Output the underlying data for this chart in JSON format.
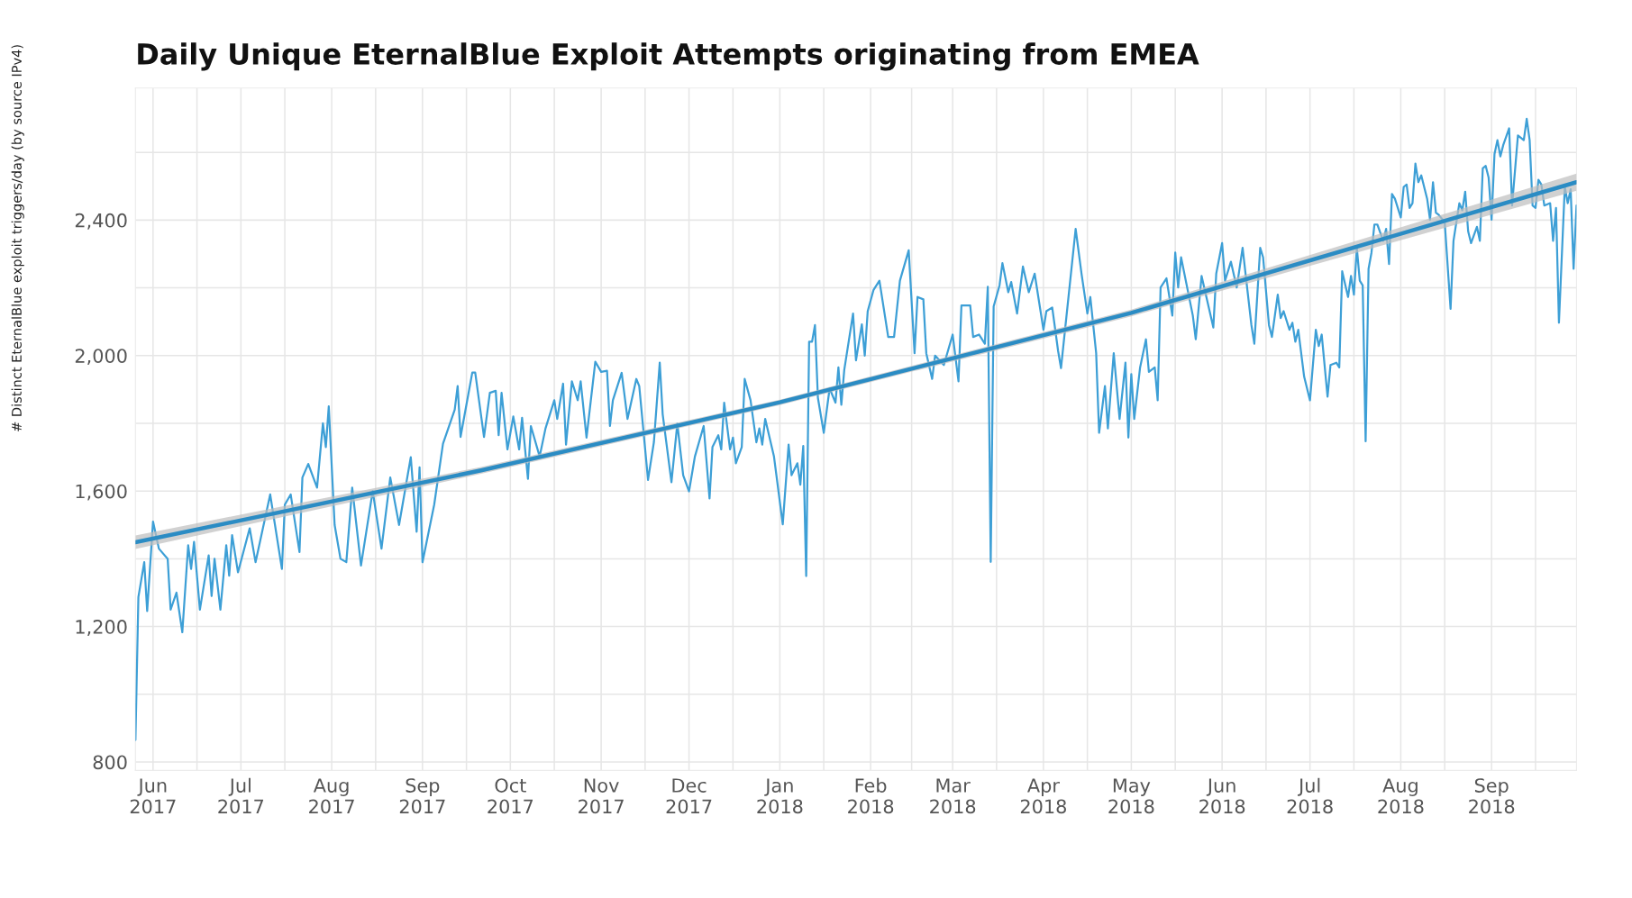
{
  "chart_data": {
    "type": "line",
    "title": "Daily Unique EternalBlue Exploit Attempts originating from EMEA",
    "ylabel": "# Distinct EternalBlue exploit triggers/day (by source IPv4)",
    "xlim": [
      "2017-05-26",
      "2018-09-30"
    ],
    "ylim": [
      775,
      2790
    ],
    "yticks": [
      800,
      {
        "value": 1000,
        "label": null
      },
      {
        "value": 1200,
        "label": "1,200"
      },
      {
        "value": 1400,
        "label": null
      },
      {
        "value": 1600,
        "label": "1,600"
      },
      {
        "value": 1800,
        "label": null
      },
      {
        "value": 2000,
        "label": "2,000"
      },
      {
        "value": 2200,
        "label": null
      },
      {
        "value": 2400,
        "label": "2,400"
      },
      {
        "value": 2600,
        "label": null
      }
    ],
    "xticks": [
      {
        "value": "2017-06-01",
        "label": "Jun\n2017"
      },
      {
        "value": "2017-06-16",
        "label": null
      },
      {
        "value": "2017-07-01",
        "label": "Jul\n2017"
      },
      {
        "value": "2017-07-16",
        "label": null
      },
      {
        "value": "2017-08-01",
        "label": "Aug\n2017"
      },
      {
        "value": "2017-08-16",
        "label": null
      },
      {
        "value": "2017-09-01",
        "label": "Sep\n2017"
      },
      {
        "value": "2017-09-16",
        "label": null
      },
      {
        "value": "2017-10-01",
        "label": "Oct\n2017"
      },
      {
        "value": "2017-10-16",
        "label": null
      },
      {
        "value": "2017-11-01",
        "label": "Nov\n2017"
      },
      {
        "value": "2017-11-16",
        "label": null
      },
      {
        "value": "2017-12-01",
        "label": "Dec\n2017"
      },
      {
        "value": "2017-12-16",
        "label": null
      },
      {
        "value": "2018-01-01",
        "label": "Jan\n2018"
      },
      {
        "value": "2018-01-16",
        "label": null
      },
      {
        "value": "2018-02-01",
        "label": "Feb\n2018"
      },
      {
        "value": "2018-02-15",
        "label": null
      },
      {
        "value": "2018-03-01",
        "label": "Mar\n2018"
      },
      {
        "value": "2018-03-16",
        "label": null
      },
      {
        "value": "2018-04-01",
        "label": "Apr\n2018"
      },
      {
        "value": "2018-04-16",
        "label": null
      },
      {
        "value": "2018-05-01",
        "label": "May\n2018"
      },
      {
        "value": "2018-05-16",
        "label": null
      },
      {
        "value": "2018-06-01",
        "label": "Jun\n2018"
      },
      {
        "value": "2018-06-16",
        "label": null
      },
      {
        "value": "2018-07-01",
        "label": "Jul\n2018"
      },
      {
        "value": "2018-07-16",
        "label": null
      },
      {
        "value": "2018-08-01",
        "label": "Aug\n2018"
      },
      {
        "value": "2018-08-16",
        "label": null
      },
      {
        "value": "2018-09-01",
        "label": "Sep\n2018"
      },
      {
        "value": "2018-09-16",
        "label": null
      }
    ],
    "grid": true,
    "series": [
      {
        "color": "#3d9fd6",
        "x": [
          "2017-05-26",
          "2017-05-27",
          "2017-05-29",
          "2017-05-30",
          "2017-06-01",
          "2017-06-03",
          "2017-06-06",
          "2017-06-07",
          "2017-06-09",
          "2017-06-11",
          "2017-06-13",
          "2017-06-14",
          "2017-06-15",
          "2017-06-17",
          "2017-06-20",
          "2017-06-21",
          "2017-06-22",
          "2017-06-24",
          "2017-06-26",
          "2017-06-27",
          "2017-06-28",
          "2017-06-30",
          "2017-07-04",
          "2017-07-06",
          "2017-07-11",
          "2017-07-15",
          "2017-07-16",
          "2017-07-18",
          "2017-07-21",
          "2017-07-22",
          "2017-07-24",
          "2017-07-27",
          "2017-07-29",
          "2017-07-30",
          "2017-07-31",
          "2017-08-02",
          "2017-08-04",
          "2017-08-06",
          "2017-08-08",
          "2017-08-11",
          "2017-08-15",
          "2017-08-18",
          "2017-08-21",
          "2017-08-24",
          "2017-08-28",
          "2017-08-30",
          "2017-08-31",
          "2017-09-01",
          "2017-09-05",
          "2017-09-08",
          "2017-09-12",
          "2017-09-13",
          "2017-09-14",
          "2017-09-18",
          "2017-09-19",
          "2017-09-22",
          "2017-09-24",
          "2017-09-26",
          "2017-09-27",
          "2017-09-28",
          "2017-09-30",
          "2017-10-02",
          "2017-10-04",
          "2017-10-05",
          "2017-10-07",
          "2017-10-08",
          "2017-10-11",
          "2017-10-13",
          "2017-10-16",
          "2017-10-17",
          "2017-10-19",
          "2017-10-20",
          "2017-10-22",
          "2017-10-24",
          "2017-10-25",
          "2017-10-27",
          "2017-10-30",
          "2017-11-01",
          "2017-11-03",
          "2017-11-04",
          "2017-11-05",
          "2017-11-08",
          "2017-11-10",
          "2017-11-13",
          "2017-11-14",
          "2017-11-17",
          "2017-11-19",
          "2017-11-21",
          "2017-11-22",
          "2017-11-25",
          "2017-11-27",
          "2017-11-29",
          "2017-12-01",
          "2017-12-03",
          "2017-12-06",
          "2017-12-08",
          "2017-12-09",
          "2017-12-11",
          "2017-12-12",
          "2017-12-13",
          "2017-12-15",
          "2017-12-16",
          "2017-12-17",
          "2017-12-19",
          "2017-12-20",
          "2017-12-22",
          "2017-12-24",
          "2017-12-25",
          "2017-12-26",
          "2017-12-27",
          "2017-12-30",
          "2018-01-02",
          "2018-01-04",
          "2018-01-05",
          "2018-01-07",
          "2018-01-08",
          "2018-01-09",
          "2018-01-10",
          "2018-01-11",
          "2018-01-12",
          "2018-01-13",
          "2018-01-14",
          "2018-01-16",
          "2018-01-18",
          "2018-01-20",
          "2018-01-21",
          "2018-01-22",
          "2018-01-23",
          "2018-01-26",
          "2018-01-27",
          "2018-01-29",
          "2018-01-30",
          "2018-01-31",
          "2018-02-02",
          "2018-02-04",
          "2018-02-05",
          "2018-02-07",
          "2018-02-09",
          "2018-02-11",
          "2018-02-14",
          "2018-02-16",
          "2018-02-17",
          "2018-02-19",
          "2018-02-20",
          "2018-02-22",
          "2018-02-23",
          "2018-02-26",
          "2018-03-01",
          "2018-03-03",
          "2018-03-04",
          "2018-03-07",
          "2018-03-08",
          "2018-03-10",
          "2018-03-12",
          "2018-03-13",
          "2018-03-14",
          "2018-03-15",
          "2018-03-17",
          "2018-03-18",
          "2018-03-20",
          "2018-03-21",
          "2018-03-23",
          "2018-03-25",
          "2018-03-27",
          "2018-03-29",
          "2018-04-01",
          "2018-04-02",
          "2018-04-04",
          "2018-04-06",
          "2018-04-07",
          "2018-04-12",
          "2018-04-14",
          "2018-04-16",
          "2018-04-17",
          "2018-04-19",
          "2018-04-20",
          "2018-04-22",
          "2018-04-23",
          "2018-04-25",
          "2018-04-27",
          "2018-04-29",
          "2018-04-30",
          "2018-05-01",
          "2018-05-02",
          "2018-05-04",
          "2018-05-06",
          "2018-05-07",
          "2018-05-09",
          "2018-05-10",
          "2018-05-11",
          "2018-05-13",
          "2018-05-15",
          "2018-05-16",
          "2018-05-17",
          "2018-05-18",
          "2018-05-22",
          "2018-05-23",
          "2018-05-25",
          "2018-05-27",
          "2018-05-29",
          "2018-05-30",
          "2018-06-01",
          "2018-06-02",
          "2018-06-04",
          "2018-06-06",
          "2018-06-08",
          "2018-06-09",
          "2018-06-11",
          "2018-06-12",
          "2018-06-14",
          "2018-06-15",
          "2018-06-17",
          "2018-06-18",
          "2018-06-20",
          "2018-06-21",
          "2018-06-22",
          "2018-06-24",
          "2018-06-25",
          "2018-06-26",
          "2018-06-27",
          "2018-06-29",
          "2018-07-01",
          "2018-07-03",
          "2018-07-04",
          "2018-07-05",
          "2018-07-07",
          "2018-07-08",
          "2018-07-10",
          "2018-07-11",
          "2018-07-12",
          "2018-07-14",
          "2018-07-15",
          "2018-07-16",
          "2018-07-17",
          "2018-07-18",
          "2018-07-19",
          "2018-07-20",
          "2018-07-21",
          "2018-07-22",
          "2018-07-23",
          "2018-07-24",
          "2018-07-26",
          "2018-07-27",
          "2018-07-28",
          "2018-07-29",
          "2018-07-30",
          "2018-08-01",
          "2018-08-02",
          "2018-08-03",
          "2018-08-04",
          "2018-08-05",
          "2018-08-06",
          "2018-08-07",
          "2018-08-08",
          "2018-08-10",
          "2018-08-11",
          "2018-08-12",
          "2018-08-13",
          "2018-08-14",
          "2018-08-16",
          "2018-08-18",
          "2018-08-19",
          "2018-08-21",
          "2018-08-22",
          "2018-08-23",
          "2018-08-24",
          "2018-08-25",
          "2018-08-27",
          "2018-08-28",
          "2018-08-29",
          "2018-08-30",
          "2018-08-31",
          "2018-09-01",
          "2018-09-02",
          "2018-09-03",
          "2018-09-04",
          "2018-09-05",
          "2018-09-07",
          "2018-09-08",
          "2018-09-10",
          "2018-09-12",
          "2018-09-13",
          "2018-09-14",
          "2018-09-15",
          "2018-09-16",
          "2018-09-17",
          "2018-09-18",
          "2018-09-19",
          "2018-09-21",
          "2018-09-22",
          "2018-09-23",
          "2018-09-24",
          "2018-09-26",
          "2018-09-27",
          "2018-09-28",
          "2018-09-29",
          "2018-09-30"
        ],
        "values": [
          865,
          1287,
          1390,
          1246,
          1510,
          1430,
          1400,
          1250,
          1300,
          1183,
          1440,
          1370,
          1450,
          1250,
          1410,
          1290,
          1400,
          1250,
          1440,
          1350,
          1470,
          1360,
          1490,
          1390,
          1590,
          1370,
          1560,
          1590,
          1420,
          1640,
          1680,
          1610,
          1800,
          1730,
          1850,
          1500,
          1400,
          1390,
          1610,
          1380,
          1600,
          1430,
          1640,
          1500,
          1700,
          1480,
          1670,
          1390,
          1560,
          1740,
          1840,
          1910,
          1760,
          1950,
          1950,
          1760,
          1890,
          1896,
          1765,
          1890,
          1723,
          1820,
          1723,
          1816,
          1636,
          1792,
          1702,
          1785,
          1868,
          1813,
          1917,
          1737,
          1924,
          1868,
          1924,
          1758,
          1982,
          1952,
          1955,
          1792,
          1868,
          1949,
          1813,
          1931,
          1910,
          1633,
          1744,
          1979,
          1827,
          1626,
          1799,
          1647,
          1599,
          1702,
          1792,
          1578,
          1730,
          1765,
          1723,
          1861,
          1723,
          1758,
          1682,
          1730,
          1931,
          1868,
          1744,
          1785,
          1737,
          1813,
          1702,
          1502,
          1737,
          1647,
          1682,
          1619,
          1733,
          1349,
          2041,
          2041,
          2090,
          1875,
          1772,
          1903,
          1861,
          1965,
          1855,
          1958,
          2124,
          1986,
          2092,
          2000,
          2131,
          2194,
          2221,
          2166,
          2055,
          2055,
          2221,
          2311,
          2007,
          2173,
          2166,
          2007,
          1931,
          2000,
          1972,
          2062,
          1924,
          2148,
          2148,
          2055,
          2062,
          2035,
          2203,
          1391,
          2145,
          2207,
          2273,
          2187,
          2217,
          2124,
          2263,
          2187,
          2242,
          2076,
          2131,
          2142,
          2014,
          1963,
          2374,
          2242,
          2124,
          2173,
          2007,
          1772,
          1910,
          1785,
          2007,
          1813,
          1979,
          1758,
          1945,
          1813,
          1965,
          2048,
          1952,
          1965,
          1868,
          2201,
          2228,
          2118,
          2304,
          2201,
          2290,
          2118,
          2048,
          2235,
          2159,
          2083,
          2242,
          2332,
          2221,
          2277,
          2201,
          2318,
          2242,
          2090,
          2035,
          2318,
          2290,
          2090,
          2055,
          2180,
          2111,
          2131,
          2076,
          2097,
          2041,
          2076,
          1938,
          1868,
          2076,
          2028,
          2062,
          1879,
          1972,
          1979,
          1965,
          2249,
          2173,
          2235,
          2180,
          2318,
          2221,
          2207,
          1747,
          2256,
          2304,
          2387,
          2387,
          2339,
          2374,
          2270,
          2477,
          2463,
          2408,
          2498,
          2505,
          2436,
          2450,
          2567,
          2512,
          2532,
          2463,
          2401,
          2512,
          2422,
          2415,
          2394,
          2138,
          2339,
          2450,
          2429,
          2484,
          2367,
          2332,
          2380,
          2339,
          2553,
          2560,
          2525,
          2401,
          2595,
          2636,
          2588,
          2622,
          2671,
          2443,
          2650,
          2636,
          2699,
          2636,
          2443,
          2436,
          2519,
          2505,
          2443,
          2450,
          2339,
          2436,
          2097,
          2498,
          2450,
          2491,
          2256,
          2443
        ]
      },
      {
        "color": "#2b8cc4",
        "x": [
          "2017-05-26",
          "2017-09-21",
          "2018-01-01",
          "2018-05-01",
          "2018-09-30"
        ],
        "values": [
          1449,
          1661,
          1862,
          2126,
          2512
        ],
        "lower": [
          1429,
          1651,
          1854,
          2116,
          2487
        ],
        "upper": [
          1469,
          1671,
          1870,
          2136,
          2537
        ]
      }
    ]
  }
}
